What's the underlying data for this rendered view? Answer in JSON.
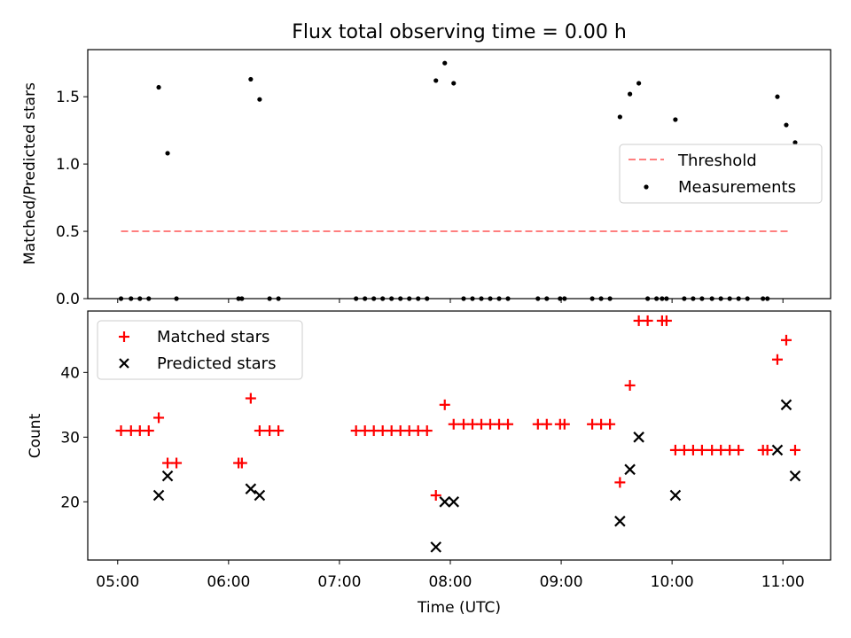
{
  "chart_data": [
    {
      "type": "scatter",
      "title": "Flux total observing time = 0.00 h",
      "xlabel": "",
      "ylabel": "Matched/Predicted stars",
      "xlim": [
        4.73,
        11.43
      ],
      "ylim": [
        0.0,
        1.85
      ],
      "yticks": [
        0.0,
        0.5,
        1.0,
        1.5
      ],
      "ytick_labels": [
        "0.0",
        "0.5",
        "1.0",
        "1.5"
      ],
      "xticks": [
        5,
        6,
        7,
        8,
        9,
        10,
        11
      ],
      "legend_position": "center-right",
      "grid": false,
      "series": [
        {
          "name": "Threshold",
          "kind": "dashed-line",
          "color": "#ff7f7f",
          "x": [
            5.03,
            11.07
          ],
          "y": [
            0.5,
            0.5
          ]
        },
        {
          "name": "Measurements",
          "kind": "dot",
          "color": "#000000",
          "points": [
            [
              5.03,
              0.0
            ],
            [
              5.12,
              0.0
            ],
            [
              5.2,
              0.0
            ],
            [
              5.28,
              0.0
            ],
            [
              5.37,
              1.57
            ],
            [
              5.45,
              1.08
            ],
            [
              5.53,
              0.0
            ],
            [
              6.09,
              0.0
            ],
            [
              6.12,
              0.0
            ],
            [
              6.2,
              1.63
            ],
            [
              6.28,
              1.48
            ],
            [
              6.37,
              0.0
            ],
            [
              6.45,
              0.0
            ],
            [
              7.15,
              0.0
            ],
            [
              7.23,
              0.0
            ],
            [
              7.31,
              0.0
            ],
            [
              7.39,
              0.0
            ],
            [
              7.47,
              0.0
            ],
            [
              7.55,
              0.0
            ],
            [
              7.63,
              0.0
            ],
            [
              7.71,
              0.0
            ],
            [
              7.79,
              0.0
            ],
            [
              7.87,
              1.62
            ],
            [
              7.95,
              1.75
            ],
            [
              8.03,
              1.6
            ],
            [
              8.12,
              0.0
            ],
            [
              8.2,
              0.0
            ],
            [
              8.28,
              0.0
            ],
            [
              8.36,
              0.0
            ],
            [
              8.44,
              0.0
            ],
            [
              8.52,
              0.0
            ],
            [
              8.79,
              0.0
            ],
            [
              8.87,
              0.0
            ],
            [
              8.99,
              0.0
            ],
            [
              9.03,
              0.0
            ],
            [
              9.28,
              0.0
            ],
            [
              9.36,
              0.0
            ],
            [
              9.44,
              0.0
            ],
            [
              9.53,
              1.35
            ],
            [
              9.62,
              1.52
            ],
            [
              9.7,
              1.6
            ],
            [
              9.78,
              0.0
            ],
            [
              9.86,
              0.0
            ],
            [
              9.91,
              0.0
            ],
            [
              9.95,
              0.0
            ],
            [
              10.03,
              1.33
            ],
            [
              10.11,
              0.0
            ],
            [
              10.19,
              0.0
            ],
            [
              10.27,
              0.0
            ],
            [
              10.36,
              0.0
            ],
            [
              10.44,
              0.0
            ],
            [
              10.52,
              0.0
            ],
            [
              10.6,
              0.0
            ],
            [
              10.68,
              0.0
            ],
            [
              10.82,
              0.0
            ],
            [
              10.86,
              0.0
            ],
            [
              10.95,
              1.5
            ],
            [
              11.03,
              1.29
            ],
            [
              11.11,
              1.16
            ]
          ]
        }
      ]
    },
    {
      "type": "scatter",
      "title": "",
      "xlabel": "Time (UTC)",
      "ylabel": "Count",
      "xlim": [
        4.73,
        11.43
      ],
      "ylim": [
        11,
        49.5
      ],
      "yticks": [
        20,
        30,
        40
      ],
      "ytick_labels": [
        "20",
        "30",
        "40"
      ],
      "xticks": [
        5,
        6,
        7,
        8,
        9,
        10,
        11
      ],
      "xtick_labels": [
        "05:00",
        "06:00",
        "07:00",
        "08:00",
        "09:00",
        "10:00",
        "11:00"
      ],
      "legend_position": "top-left",
      "grid": false,
      "series": [
        {
          "name": "Matched stars",
          "kind": "plus",
          "color": "#ff0000",
          "points": [
            [
              5.03,
              31
            ],
            [
              5.12,
              31
            ],
            [
              5.2,
              31
            ],
            [
              5.28,
              31
            ],
            [
              5.37,
              33
            ],
            [
              5.45,
              26
            ],
            [
              5.53,
              26
            ],
            [
              6.09,
              26
            ],
            [
              6.12,
              26
            ],
            [
              6.2,
              36
            ],
            [
              6.28,
              31
            ],
            [
              6.37,
              31
            ],
            [
              6.45,
              31
            ],
            [
              7.15,
              31
            ],
            [
              7.23,
              31
            ],
            [
              7.31,
              31
            ],
            [
              7.39,
              31
            ],
            [
              7.47,
              31
            ],
            [
              7.55,
              31
            ],
            [
              7.63,
              31
            ],
            [
              7.71,
              31
            ],
            [
              7.79,
              31
            ],
            [
              7.87,
              21
            ],
            [
              7.95,
              35
            ],
            [
              8.03,
              32
            ],
            [
              8.12,
              32
            ],
            [
              8.2,
              32
            ],
            [
              8.28,
              32
            ],
            [
              8.36,
              32
            ],
            [
              8.44,
              32
            ],
            [
              8.52,
              32
            ],
            [
              8.79,
              32
            ],
            [
              8.87,
              32
            ],
            [
              8.99,
              32
            ],
            [
              9.03,
              32
            ],
            [
              9.28,
              32
            ],
            [
              9.36,
              32
            ],
            [
              9.44,
              32
            ],
            [
              9.53,
              23
            ],
            [
              9.62,
              38
            ],
            [
              9.7,
              48
            ],
            [
              9.78,
              48
            ],
            [
              9.91,
              48
            ],
            [
              9.95,
              48
            ],
            [
              10.03,
              28
            ],
            [
              10.11,
              28
            ],
            [
              10.19,
              28
            ],
            [
              10.27,
              28
            ],
            [
              10.36,
              28
            ],
            [
              10.44,
              28
            ],
            [
              10.52,
              28
            ],
            [
              10.6,
              28
            ],
            [
              10.82,
              28
            ],
            [
              10.86,
              28
            ],
            [
              10.95,
              42
            ],
            [
              11.03,
              45
            ],
            [
              11.11,
              28
            ]
          ]
        },
        {
          "name": "Predicted stars",
          "kind": "x",
          "color": "#000000",
          "points": [
            [
              5.37,
              21
            ],
            [
              5.45,
              24
            ],
            [
              6.2,
              22
            ],
            [
              6.28,
              21
            ],
            [
              7.87,
              13
            ],
            [
              7.95,
              20
            ],
            [
              8.03,
              20
            ],
            [
              9.53,
              17
            ],
            [
              9.62,
              25
            ],
            [
              9.7,
              30
            ],
            [
              10.03,
              21
            ],
            [
              10.95,
              28
            ],
            [
              11.03,
              35
            ],
            [
              11.11,
              24
            ]
          ]
        }
      ]
    }
  ]
}
